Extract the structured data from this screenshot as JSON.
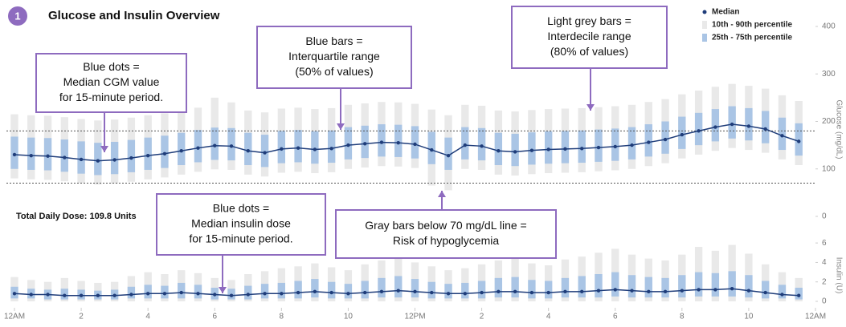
{
  "badge": "1",
  "title": "Glucose and Insulin Overview",
  "total_dose": "Total Daily Dose: 109.8 Units",
  "annotations": [
    {
      "lines": [
        "Blue dots =",
        "Median CGM value",
        "for 15-minute period."
      ]
    },
    {
      "lines": [
        "Blue bars =",
        "Interquartile range",
        "(50% of values)"
      ]
    },
    {
      "lines": [
        "Light grey bars =",
        "Interdecile range",
        "(80% of values)"
      ]
    },
    {
      "lines": [
        "Blue dots =",
        "Median insulin dose",
        "for 15-minute period."
      ]
    },
    {
      "lines": [
        "Gray bars below 70 mg/dL line =",
        "Risk of hypoglycemia"
      ]
    }
  ],
  "chart_data": [
    {
      "type": "range_bar",
      "y_label": "Glucose (mg/dL)",
      "x": [
        0,
        0.5,
        1,
        1.5,
        2,
        2.5,
        3,
        3.5,
        4,
        4.5,
        5,
        5.5,
        6,
        6.5,
        7,
        7.5,
        8,
        8.5,
        9,
        9.5,
        10,
        10.5,
        11,
        11.5,
        12,
        12.5,
        13,
        13.5,
        14,
        14.5,
        15,
        15.5,
        16,
        16.5,
        17,
        17.5,
        18,
        18.5,
        19,
        19.5,
        20,
        20.5,
        21,
        21.5,
        22,
        22.5,
        23,
        23.5
      ],
      "xlim": [
        0,
        24
      ],
      "ylim": [
        0,
        400
      ],
      "yticks": [
        0,
        100,
        200,
        300,
        400
      ],
      "thresholds": [
        180,
        70
      ],
      "legend": "top-right",
      "series": [
        {
          "name": "Median",
          "color": "#1f3d7a",
          "values": [
            130,
            128,
            127,
            124,
            120,
            117,
            119,
            123,
            128,
            132,
            138,
            144,
            149,
            148,
            138,
            134,
            142,
            144,
            141,
            143,
            150,
            153,
            156,
            155,
            152,
            140,
            128,
            150,
            148,
            138,
            136,
            139,
            141,
            142,
            143,
            145,
            147,
            150,
            156,
            162,
            172,
            180,
            188,
            194,
            190,
            184,
            170,
            158
          ]
        },
        {
          "name": "10th - 90th percentile",
          "color": "#e9e9e9",
          "low": [
            80,
            78,
            77,
            74,
            70,
            67,
            69,
            73,
            78,
            82,
            88,
            94,
            99,
            98,
            88,
            84,
            92,
            94,
            91,
            93,
            100,
            103,
            106,
            105,
            102,
            65,
            55,
            100,
            98,
            88,
            86,
            89,
            91,
            92,
            93,
            95,
            97,
            100,
            106,
            112,
            122,
            130,
            138,
            144,
            140,
            134,
            120,
            108
          ],
          "high": [
            215,
            213,
            212,
            209,
            205,
            202,
            204,
            208,
            213,
            217,
            223,
            229,
            250,
            240,
            223,
            219,
            227,
            229,
            226,
            228,
            235,
            238,
            241,
            240,
            237,
            225,
            213,
            235,
            233,
            223,
            221,
            224,
            226,
            227,
            228,
            230,
            232,
            235,
            241,
            247,
            257,
            265,
            273,
            279,
            275,
            269,
            255,
            243
          ]
        },
        {
          "name": "25th - 75th percentile",
          "color": "#aac5e5",
          "low": [
            100,
            98,
            97,
            94,
            90,
            87,
            89,
            93,
            98,
            102,
            108,
            114,
            119,
            118,
            108,
            104,
            112,
            114,
            111,
            113,
            120,
            123,
            126,
            125,
            122,
            110,
            98,
            120,
            118,
            108,
            106,
            109,
            111,
            112,
            113,
            115,
            117,
            120,
            126,
            132,
            142,
            150,
            158,
            164,
            160,
            154,
            140,
            128
          ],
          "high": [
            168,
            166,
            165,
            162,
            158,
            155,
            157,
            161,
            166,
            170,
            176,
            182,
            187,
            186,
            176,
            172,
            180,
            182,
            179,
            181,
            188,
            191,
            194,
            193,
            190,
            178,
            166,
            188,
            186,
            176,
            174,
            177,
            179,
            180,
            181,
            183,
            185,
            188,
            194,
            200,
            210,
            218,
            226,
            232,
            228,
            222,
            208,
            196
          ]
        }
      ]
    },
    {
      "type": "range_bar",
      "y_label": "Insulin (U)",
      "x": [
        0,
        0.5,
        1,
        1.5,
        2,
        2.5,
        3,
        3.5,
        4,
        4.5,
        5,
        5.5,
        6,
        6.5,
        7,
        7.5,
        8,
        8.5,
        9,
        9.5,
        10,
        10.5,
        11,
        11.5,
        12,
        12.5,
        13,
        13.5,
        14,
        14.5,
        15,
        15.5,
        16,
        16.5,
        17,
        17.5,
        18,
        18.5,
        19,
        19.5,
        20,
        20.5,
        21,
        21.5,
        22,
        22.5,
        23,
        23.5
      ],
      "xlim": [
        0,
        24
      ],
      "xticks": [
        {
          "value": 0,
          "label": "12AM"
        },
        2,
        4,
        6,
        8,
        10,
        {
          "value": 12,
          "label": "12PM"
        },
        {
          "value": 14,
          "label": "2"
        },
        {
          "value": 16,
          "label": "4"
        },
        {
          "value": 18,
          "label": "6"
        },
        {
          "value": 20,
          "label": "8"
        },
        {
          "value": 22,
          "label": "10"
        },
        {
          "value": 24,
          "label": "12AM"
        }
      ],
      "ylim": [
        0,
        7
      ],
      "yticks": [
        0,
        2,
        4,
        6
      ],
      "series": [
        {
          "color": "#1f3d7a",
          "values": [
            0.8,
            0.7,
            0.7,
            0.6,
            0.6,
            0.6,
            0.6,
            0.7,
            0.8,
            0.8,
            0.9,
            0.8,
            0.7,
            0.6,
            0.7,
            0.8,
            0.8,
            0.9,
            1.0,
            0.9,
            0.8,
            0.9,
            1.0,
            1.1,
            1.0,
            0.9,
            0.8,
            0.8,
            0.9,
            1.0,
            1.0,
            0.9,
            0.9,
            1.0,
            1.0,
            1.1,
            1.2,
            1.1,
            1.0,
            1.0,
            1.1,
            1.2,
            1.2,
            1.3,
            1.1,
            0.9,
            0.7,
            0.6
          ]
        },
        {
          "color": "#e9e9e9",
          "low": [
            0,
            0,
            0,
            0,
            0,
            0,
            0,
            0,
            0,
            0,
            0,
            0,
            0,
            0,
            0,
            0,
            0,
            0,
            0,
            0,
            0,
            0,
            0,
            0,
            0,
            0,
            0,
            0,
            0,
            0,
            0,
            0,
            0,
            0,
            0,
            0,
            0,
            0,
            0,
            0,
            0,
            0,
            0,
            0,
            0,
            0,
            0,
            0
          ],
          "high": [
            2.5,
            2.2,
            2.0,
            2.4,
            2.1,
            1.9,
            2.0,
            2.6,
            3.0,
            2.8,
            3.2,
            2.9,
            2.4,
            2.2,
            2.8,
            3.1,
            3.4,
            3.6,
            3.9,
            3.5,
            3.2,
            3.8,
            4.2,
            4.5,
            4.0,
            3.6,
            3.2,
            3.4,
            3.8,
            4.2,
            4.4,
            3.9,
            3.7,
            4.3,
            4.6,
            5.0,
            5.4,
            4.8,
            4.4,
            4.2,
            4.8,
            5.6,
            5.2,
            5.8,
            4.9,
            3.8,
            3.0,
            2.4
          ]
        },
        {
          "color": "#aac5e5",
          "low": [
            0.3,
            0.3,
            0.2,
            0.2,
            0.2,
            0.2,
            0.2,
            0.3,
            0.3,
            0.3,
            0.3,
            0.3,
            0.2,
            0.2,
            0.2,
            0.3,
            0.3,
            0.3,
            0.4,
            0.3,
            0.3,
            0.3,
            0.4,
            0.4,
            0.4,
            0.3,
            0.3,
            0.3,
            0.3,
            0.4,
            0.4,
            0.3,
            0.3,
            0.4,
            0.4,
            0.4,
            0.5,
            0.4,
            0.4,
            0.4,
            0.4,
            0.5,
            0.5,
            0.5,
            0.4,
            0.3,
            0.3,
            0.2
          ],
          "high": [
            1.5,
            1.3,
            1.2,
            1.3,
            1.2,
            1.1,
            1.2,
            1.5,
            1.7,
            1.6,
            1.9,
            1.7,
            1.4,
            1.3,
            1.6,
            1.8,
            1.9,
            2.1,
            2.3,
            2.0,
            1.8,
            2.1,
            2.4,
            2.6,
            2.3,
            2.0,
            1.8,
            1.9,
            2.1,
            2.4,
            2.5,
            2.2,
            2.1,
            2.4,
            2.6,
            2.8,
            3.0,
            2.7,
            2.5,
            2.4,
            2.7,
            3.0,
            2.9,
            3.1,
            2.7,
            2.1,
            1.7,
            1.4
          ]
        }
      ]
    }
  ]
}
